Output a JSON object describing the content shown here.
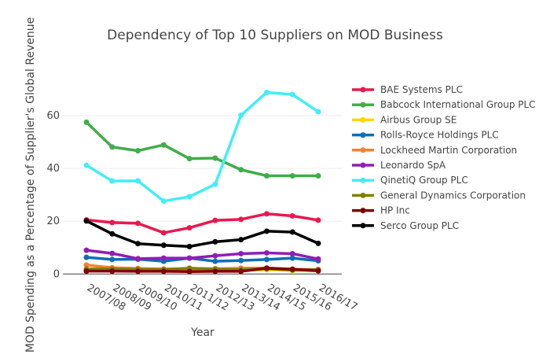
{
  "chart_data": {
    "type": "line",
    "title": "Dependency of Top 10 Suppliers on MOD Business",
    "xlabel": "Year",
    "ylabel": "MOD Spending as a Percentage of Supplier's Global Revenue",
    "categories": [
      "2007/08",
      "2008/09",
      "2009/10",
      "2010/11",
      "2011/12",
      "2012/13",
      "2013/14",
      "2014/15",
      "2015/16",
      "2016/17"
    ],
    "ylim": [
      -2,
      74
    ],
    "yticks": [
      0,
      20,
      40,
      60
    ],
    "grid": true,
    "legend_position": "right",
    "series": [
      {
        "name": "BAE Systems PLC",
        "color": "#e8194f",
        "values": [
          20.5,
          19.5,
          19.2,
          15.6,
          17.5,
          20.3,
          20.7,
          22.8,
          22.0,
          20.4
        ]
      },
      {
        "name": "Babcock International Group PLC",
        "color": "#3fae49",
        "values": [
          57.5,
          48.1,
          46.7,
          48.9,
          43.7,
          43.9,
          39.5,
          37.2,
          37.2,
          37.2
        ]
      },
      {
        "name": "Airbus Group SE",
        "color": "#ffd700",
        "values": [
          1.8,
          1.6,
          1.4,
          1.3,
          1.5,
          1.4,
          1.3,
          1.6,
          1.3,
          1.2
        ]
      },
      {
        "name": "Rolls-Royce Holdings PLC",
        "color": "#0b6fb5",
        "values": [
          6.3,
          5.5,
          5.6,
          4.8,
          6.0,
          4.8,
          5.1,
          5.5,
          6.0,
          5.0
        ]
      },
      {
        "name": "Lockheed Martin Corporation",
        "color": "#f58231",
        "values": [
          3.4,
          2.4,
          2.1,
          1.9,
          2.0,
          2.0,
          2.2,
          2.3,
          1.8,
          1.7
        ]
      },
      {
        "name": "Leonardo SpA",
        "color": "#911eb4",
        "values": [
          9.0,
          7.8,
          5.8,
          6.0,
          6.0,
          6.9,
          7.7,
          8.0,
          7.7,
          5.7
        ]
      },
      {
        "name": "QinetiQ Group PLC",
        "color": "#42eef4",
        "values": [
          41.2,
          35.2,
          35.3,
          27.6,
          29.3,
          34.0,
          60.1,
          68.8,
          68.0,
          61.5
        ]
      },
      {
        "name": "General Dynamics Corporation",
        "color": "#808000",
        "values": [
          1.9,
          1.9,
          1.8,
          1.7,
          2.2,
          1.9,
          1.6,
          2.0,
          1.5,
          1.7
        ]
      },
      {
        "name": "HP Inc",
        "color": "#800000",
        "values": [
          1.1,
          1.1,
          1.0,
          1.0,
          0.9,
          1.0,
          1.0,
          2.2,
          1.8,
          1.2
        ]
      },
      {
        "name": "Serco Group PLC",
        "color": "#000000",
        "values": [
          20.1,
          15.2,
          11.5,
          10.9,
          10.4,
          12.2,
          13.0,
          16.2,
          15.9,
          11.6
        ]
      }
    ]
  }
}
